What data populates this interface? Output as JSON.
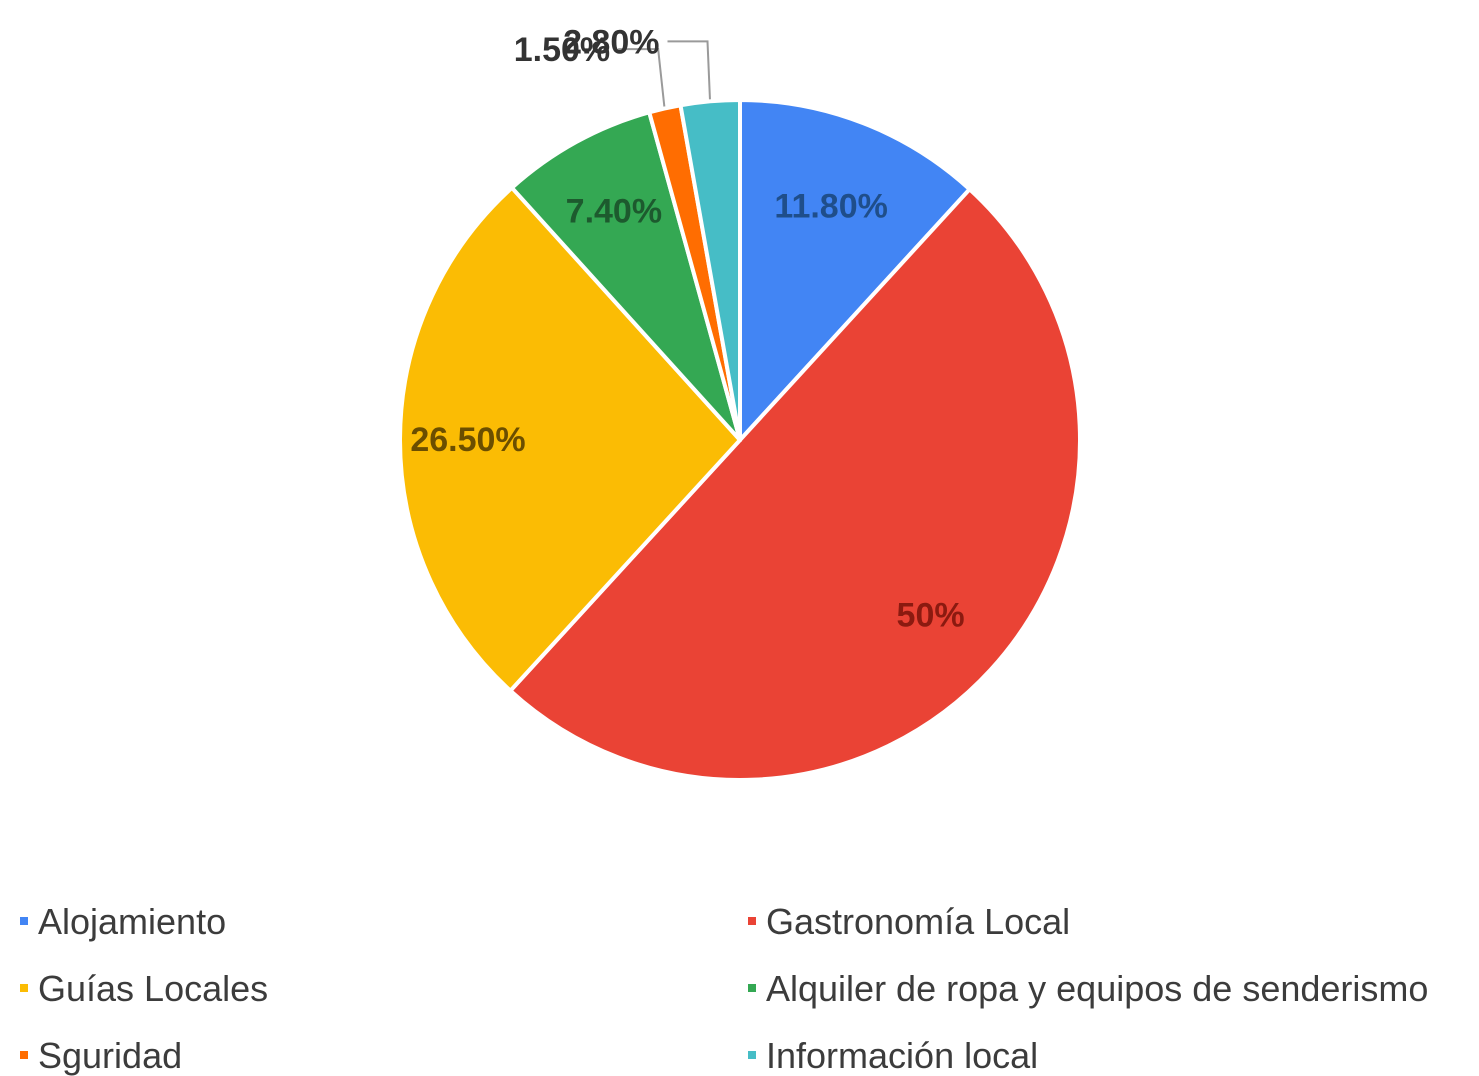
{
  "chart_data": {
    "type": "pie",
    "slices": [
      {
        "name": "Alojamiento",
        "value": 11.8,
        "label": "11.80%",
        "color": "#4285F4"
      },
      {
        "name": "Gastronomía Local",
        "value": 50,
        "label": "50%",
        "color": "#EA4335"
      },
      {
        "name": "Guías Locales",
        "value": 26.5,
        "label": "26.50%",
        "color": "#FBBC04"
      },
      {
        "name": "Alquiler de ropa y equipos de senderismo",
        "value": 7.4,
        "label": "7.40%",
        "color": "#34A853"
      },
      {
        "name": "Sguridad",
        "value": 1.5,
        "label": "1.50%",
        "color": "#FF6D01"
      },
      {
        "name": "Información local",
        "value": 2.8,
        "label": "2.80%",
        "color": "#46BDC6"
      }
    ],
    "legend_position": "bottom"
  }
}
